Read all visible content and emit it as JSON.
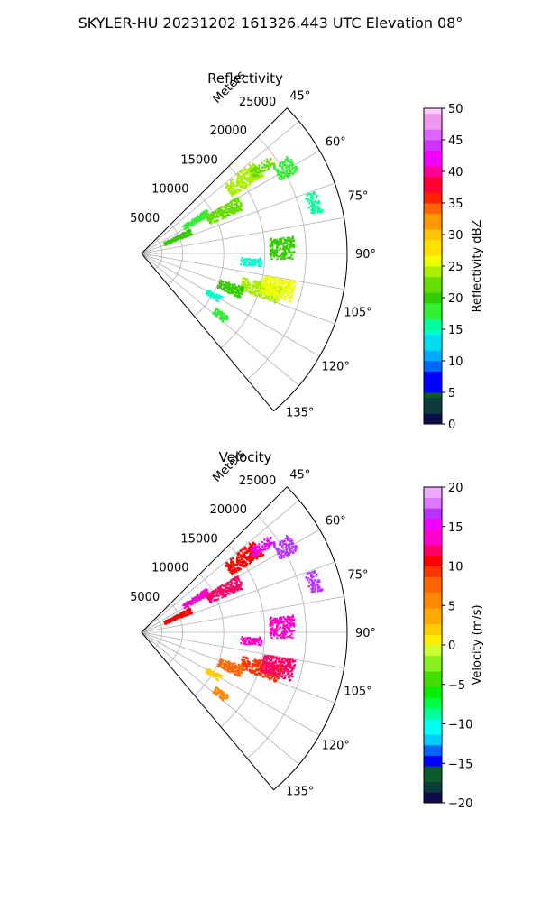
{
  "suptitle": "SKYLER-HU  20231202  161326.443 UTC Elevation 08°",
  "chart_data": [
    {
      "type": "polar_sector",
      "title": "Reflectivity",
      "range_label": "Meters",
      "range_ticks": [
        5000,
        10000,
        15000,
        20000,
        25000
      ],
      "range_max": 25000,
      "azimuth_ticks": [
        "45°",
        "60°",
        "75°",
        "90°",
        "105°",
        "120°",
        "135°"
      ],
      "azimuth_range_deg": [
        45,
        140
      ],
      "colorbar": {
        "label": "Reflectivity dBZ",
        "ticks": [
          "0",
          "5",
          "10",
          "15",
          "20",
          "25",
          "30",
          "35",
          "40",
          "45",
          "50"
        ],
        "range": [
          0,
          50
        ]
      }
    },
    {
      "type": "polar_sector",
      "title": "Velocity",
      "range_label": "Meters",
      "range_ticks": [
        5000,
        10000,
        15000,
        20000,
        25000
      ],
      "range_max": 25000,
      "azimuth_ticks": [
        "45°",
        "60°",
        "75°",
        "90°",
        "105°",
        "120°",
        "135°"
      ],
      "azimuth_range_deg": [
        45,
        140
      ],
      "colorbar": {
        "label": "Velocity (m/s)",
        "ticks": [
          "−20",
          "−15",
          "−10",
          "−5",
          "0",
          "5",
          "10",
          "15",
          "20"
        ],
        "range": [
          -20,
          20
        ]
      }
    }
  ]
}
